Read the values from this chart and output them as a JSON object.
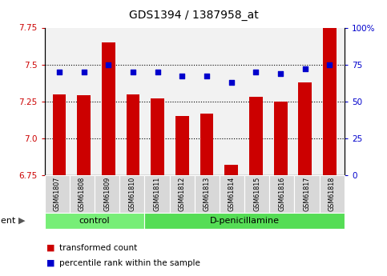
{
  "title": "GDS1394 / 1387958_at",
  "samples": [
    "GSM61807",
    "GSM61808",
    "GSM61809",
    "GSM61810",
    "GSM61811",
    "GSM61812",
    "GSM61813",
    "GSM61814",
    "GSM61815",
    "GSM61816",
    "GSM61817",
    "GSM61818"
  ],
  "transformed_count": [
    7.3,
    7.29,
    7.65,
    7.3,
    7.27,
    7.15,
    7.17,
    6.82,
    7.28,
    7.25,
    7.38,
    7.82
  ],
  "percentile_rank": [
    70,
    70,
    75,
    70,
    70,
    67,
    67,
    63,
    70,
    69,
    72,
    75
  ],
  "ylim_left": [
    6.75,
    7.75
  ],
  "ylim_right": [
    0,
    100
  ],
  "yticks_left": [
    6.75,
    7.0,
    7.25,
    7.5,
    7.75
  ],
  "yticks_right": [
    0,
    25,
    50,
    75,
    100
  ],
  "bar_color": "#cc0000",
  "dot_color": "#0000cc",
  "grid_lines": [
    7.0,
    7.25,
    7.5
  ],
  "groups": [
    {
      "label": "control",
      "start": 0,
      "end": 4,
      "color": "#77ee77"
    },
    {
      "label": "D-penicillamine",
      "start": 4,
      "end": 12,
      "color": "#55dd55"
    }
  ],
  "title_fontsize": 10,
  "tick_fontsize": 7.5,
  "bar_width": 0.55,
  "background_color": "#ffffff",
  "plot_bg_color": "#f2f2f2"
}
